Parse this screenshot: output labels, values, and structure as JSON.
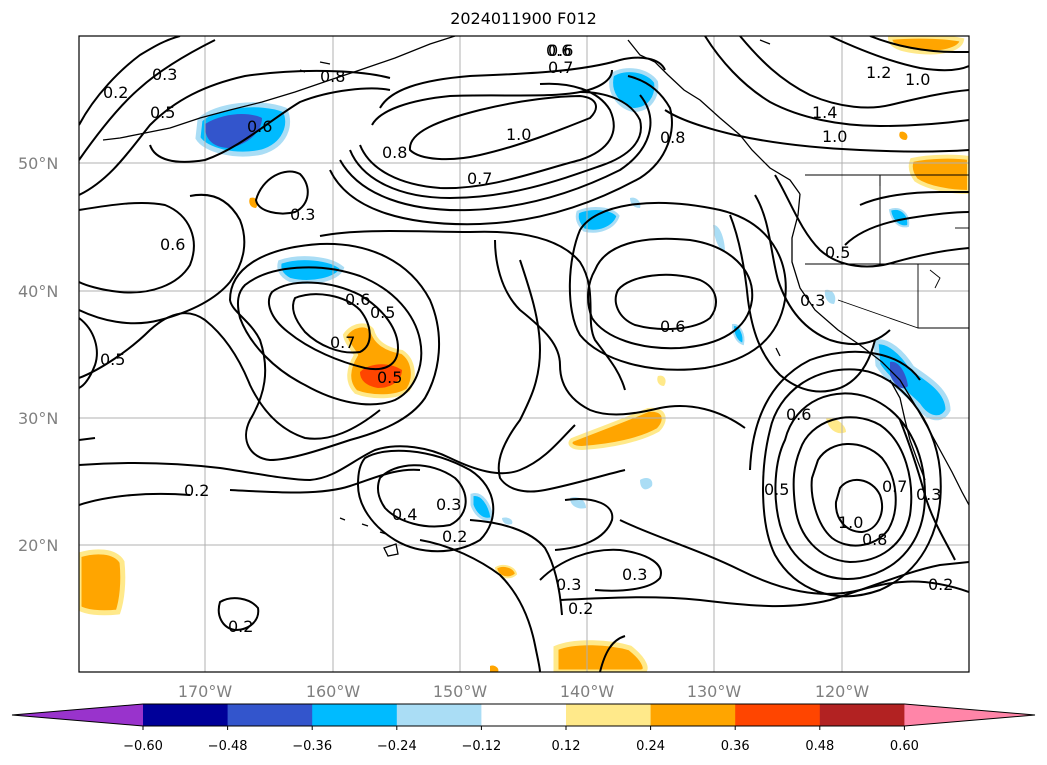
{
  "title": "2024011900 F012",
  "latitude_labels": [
    "50°N",
    "40°N",
    "30°N",
    "20°N"
  ],
  "longitude_labels": [
    "170°W",
    "160°W",
    "150°W",
    "140°W",
    "130°W",
    "120°W"
  ],
  "contour_labels": [
    "0.2",
    "0.3",
    "0.5",
    "0.6",
    "0.8",
    "0.6",
    "0.8",
    "1.0",
    "0.7",
    "0.6",
    "0.7",
    "0.8",
    "1.2",
    "1.0",
    "1.4",
    "1.0",
    "0.3",
    "0.6",
    "0.5",
    "0.6",
    "0.7",
    "0.5",
    "0.3",
    "0.6",
    "0.3",
    "0.4",
    "0.2",
    "0.2",
    "0.3",
    "0.2",
    "0.3",
    "0.6",
    "0.5",
    "0.7",
    "0.8",
    "1.0",
    "0.3",
    "0.2",
    "0.2",
    "0.5",
    "0.5"
  ],
  "colorbar": {
    "ticks": [
      "−0.60",
      "−0.48",
      "−0.36",
      "−0.24",
      "−0.12",
      "0.12",
      "0.24",
      "0.36",
      "0.48",
      "0.60"
    ],
    "colors": [
      "#9933cc",
      "#000099",
      "#3355cc",
      "#00bbff",
      "#aaddf5",
      "#ffffff",
      "#ffe98a",
      "#ffa500",
      "#ff4500",
      "#b22222",
      "#ff85a8"
    ]
  }
}
